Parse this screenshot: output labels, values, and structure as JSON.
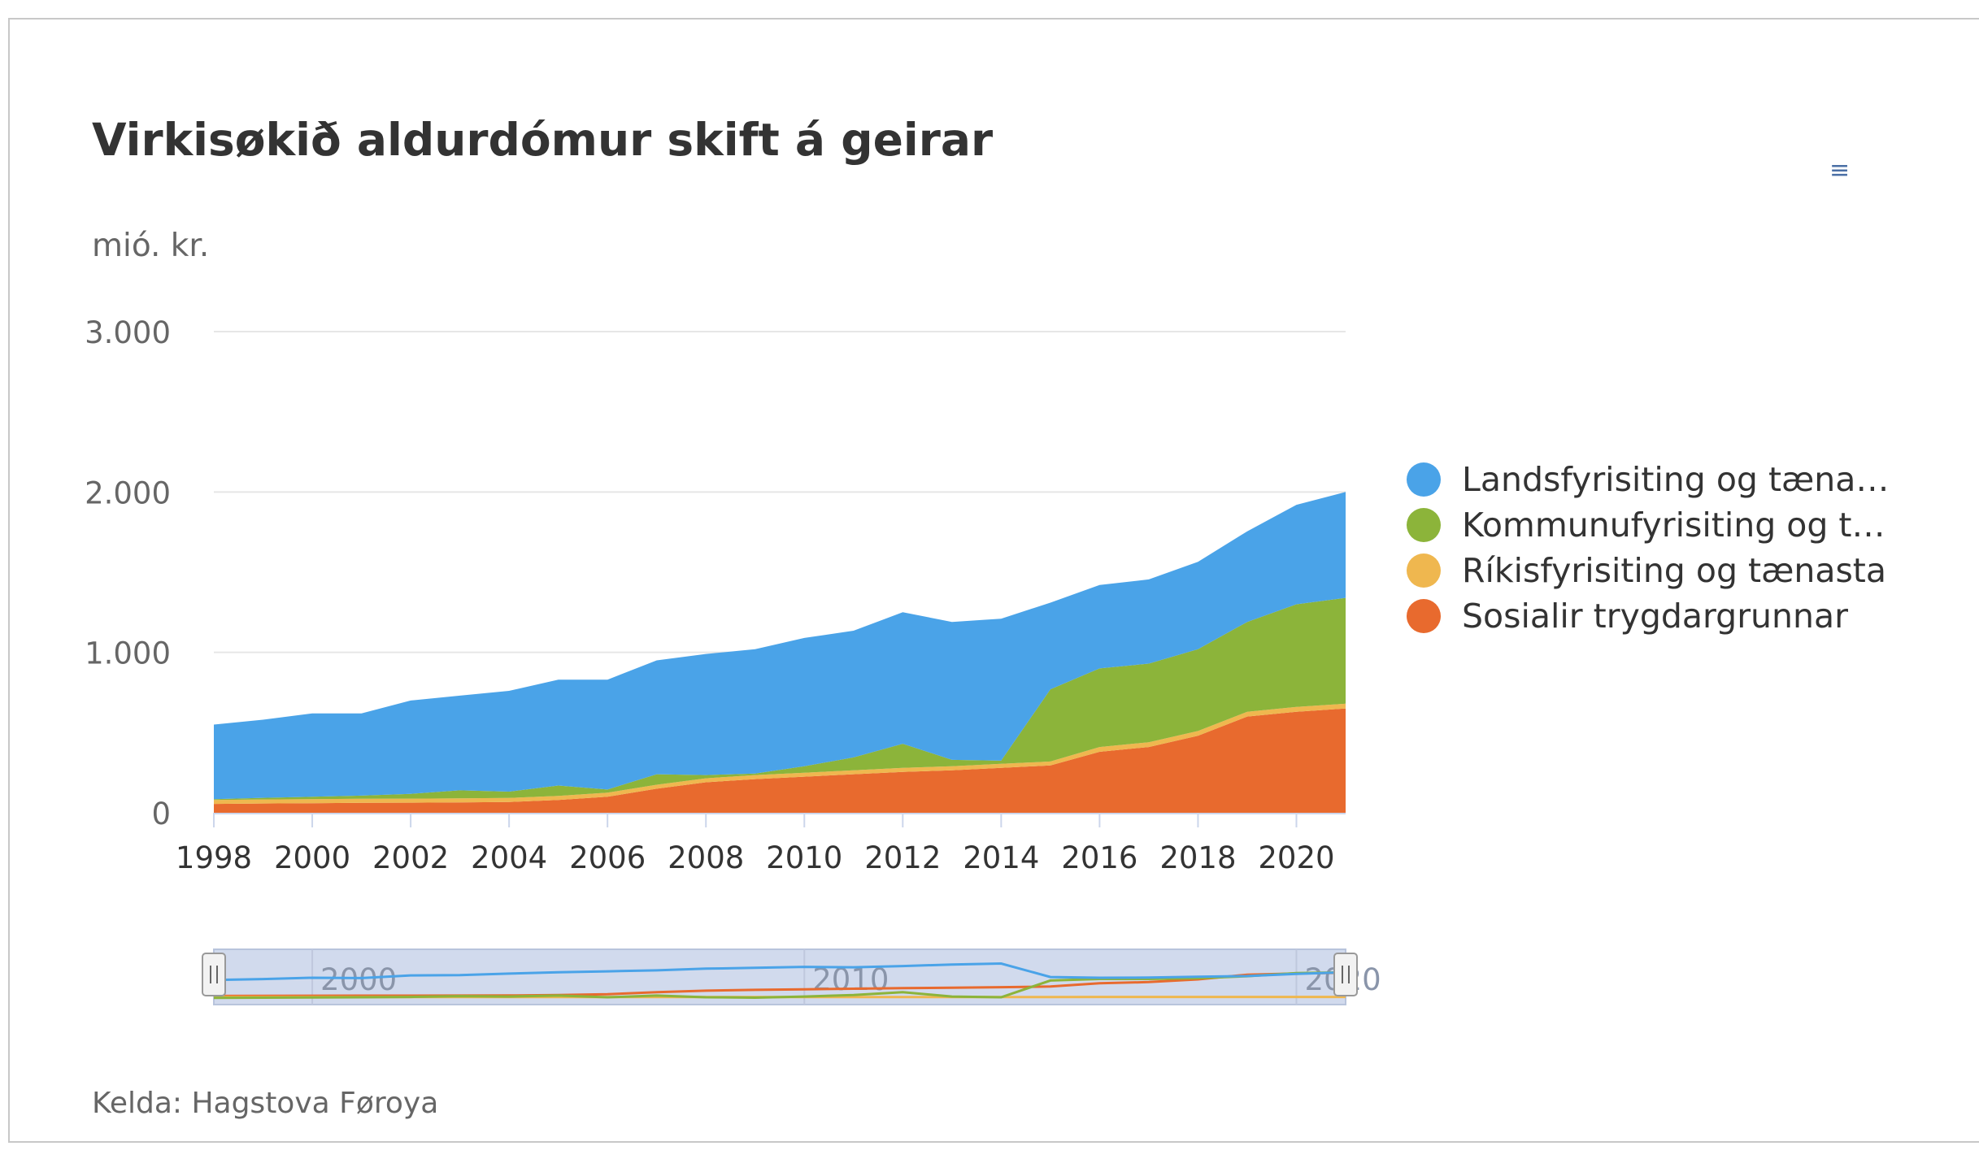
{
  "title": "Virkisøkið aldurdómur skift á geirar",
  "unit_label": "mió. kr.",
  "menu_icon": "hamburger-menu-icon",
  "source": "Kelda: Hagstova Føroya",
  "colors": {
    "series": [
      "#4aa3e8",
      "#8cb43a",
      "#efb74f",
      "#e86a2e"
    ],
    "gridline": "#e6e6e6",
    "axis": "#ccd6eb",
    "navigator_mask": "rgba(102,133,194,0.3)"
  },
  "legend": [
    {
      "label": "Landsfyrisiting og tænasta",
      "color": "#4aa3e8"
    },
    {
      "label": "Kommunufyrisiting og tæ...",
      "color": "#8cb43a"
    },
    {
      "label": "Ríkisfyrisiting og tænasta",
      "color": "#efb74f"
    },
    {
      "label": "Sosialir trygdargrunnar",
      "color": "#e86a2e"
    }
  ],
  "chart_data": {
    "type": "area",
    "stacked": true,
    "title": "Virkisøkið aldurdómur skift á geirar",
    "ylabel": "mió. kr.",
    "xlabel": "",
    "ylim": [
      0,
      3000
    ],
    "yticks": [
      "0",
      "1.000",
      "2.000",
      "3.000"
    ],
    "xticks": [
      "1998",
      "2000",
      "2002",
      "2004",
      "2006",
      "2008",
      "2010",
      "2012",
      "2014",
      "2016",
      "2018",
      "2020"
    ],
    "x": [
      1998,
      1999,
      2000,
      2001,
      2002,
      2003,
      2004,
      2005,
      2006,
      2007,
      2008,
      2009,
      2010,
      2011,
      2012,
      2013,
      2014,
      2015,
      2016,
      2017,
      2018,
      2019,
      2020,
      2021
    ],
    "series": [
      {
        "name": "Sosialir trygdargrunnar",
        "values": [
          55,
          58,
          60,
          62,
          63,
          65,
          67,
          80,
          100,
          150,
          190,
          210,
          225,
          240,
          255,
          265,
          280,
          295,
          380,
          410,
          480,
          600,
          630,
          650
        ]
      },
      {
        "name": "Ríkisfyrisiting og tænasta",
        "values": [
          25,
          25,
          25,
          25,
          25,
          25,
          25,
          25,
          25,
          25,
          25,
          25,
          25,
          25,
          25,
          25,
          25,
          25,
          30,
          30,
          30,
          30,
          30,
          30
        ]
      },
      {
        "name": "Kommunufyrisiting og tæ...",
        "values": [
          5,
          10,
          15,
          20,
          30,
          50,
          40,
          65,
          20,
          65,
          20,
          10,
          40,
          80,
          150,
          40,
          20,
          450,
          490,
          490,
          510,
          560,
          640,
          660
        ]
      },
      {
        "name": "Landsfyrisiting og tænasta",
        "values": [
          465,
          487,
          520,
          513,
          582,
          590,
          628,
          660,
          685,
          710,
          755,
          775,
          800,
          790,
          820,
          860,
          885,
          540,
          520,
          525,
          545,
          565,
          620,
          660
        ]
      }
    ],
    "grid": true,
    "legend_position": "right",
    "navigator_xticks": [
      "2000",
      "2010",
      "2020"
    ]
  }
}
